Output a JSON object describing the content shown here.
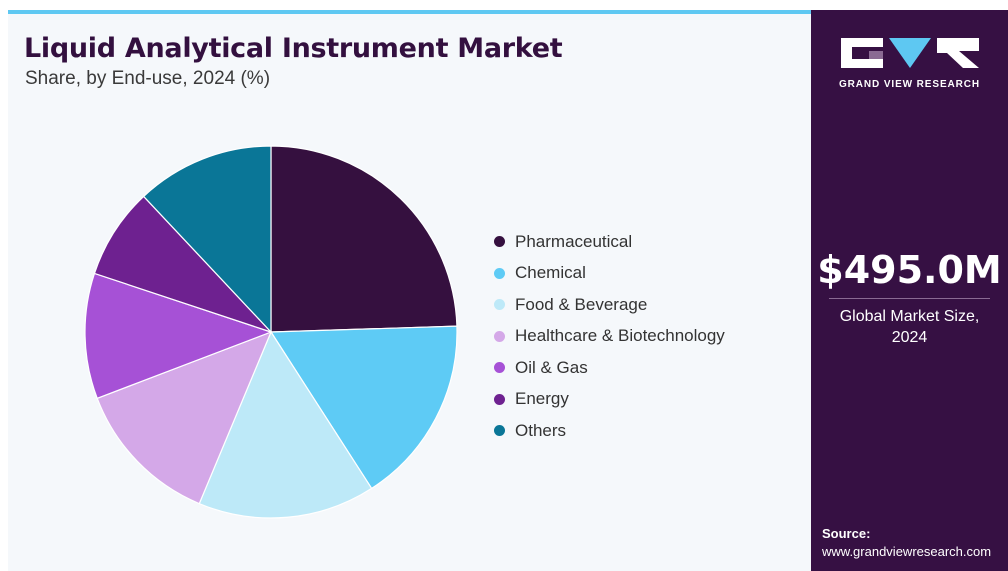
{
  "title": "Liquid Analytical Instrument Market",
  "subtitle": "Share, by End-use, 2024 (%)",
  "chart_data": {
    "type": "pie",
    "title": "Liquid Analytical Instrument Market",
    "subtitle": "Share, by End-use, 2024 (%)",
    "categories": [
      "Pharmaceutical",
      "Chemical",
      "Food & Beverage",
      "Healthcare & Biotechnology",
      "Oil & Gas",
      "Energy",
      "Others"
    ],
    "values": [
      24.5,
      16.4,
      15.4,
      12.9,
      10.9,
      7.9,
      12.0
    ],
    "colors": [
      "#35103f",
      "#5ecbf5",
      "#bde9f8",
      "#d4a8e8",
      "#a651d6",
      "#6e2190",
      "#0a7697"
    ],
    "legend_position": "right"
  },
  "legend": {
    "items": [
      {
        "label": "Pharmaceutical",
        "color": "#35103f"
      },
      {
        "label": "Chemical",
        "color": "#5ecbf5"
      },
      {
        "label": "Food & Beverage",
        "color": "#bde9f8"
      },
      {
        "label": "Healthcare & Biotechnology",
        "color": "#d4a8e8"
      },
      {
        "label": "Oil & Gas",
        "color": "#a651d6"
      },
      {
        "label": "Energy",
        "color": "#6e2190"
      },
      {
        "label": "Others",
        "color": "#0a7697"
      }
    ]
  },
  "sidebar": {
    "brand": "GRAND VIEW RESEARCH",
    "market_value": "$495.0M",
    "market_caption_line1": "Global Market Size,",
    "market_caption_line2": "2024",
    "source_label": "Source:",
    "source_url": "www.grandviewresearch.com"
  },
  "colors": {
    "sidebar_bg": "#361043",
    "accent_rule": "#5ec8f2",
    "panel_bg": "#f5f8fb",
    "title": "#33103f"
  },
  "icons": {
    "logo": "grand-view-research-logo-icon"
  }
}
